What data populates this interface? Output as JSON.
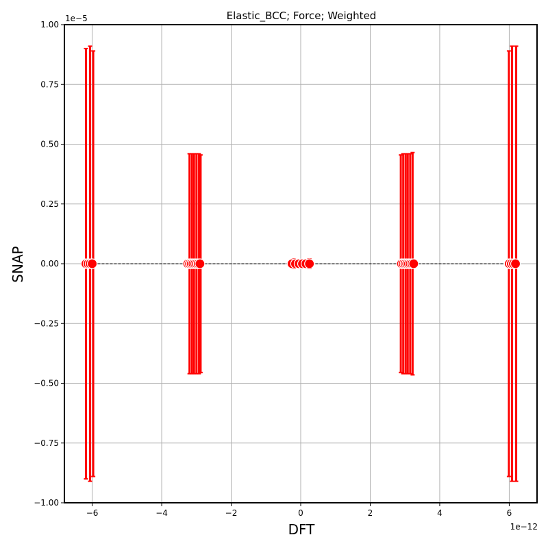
{
  "chart_data": {
    "type": "scatter",
    "title": "Elastic_BCC; Force; Weighted",
    "xlabel": "DFT",
    "ylabel": "SNAP",
    "x_offset_text": "1e−12",
    "y_offset_text": "1e−5",
    "xlim": [
      -6.8,
      6.8
    ],
    "ylim": [
      -1.0,
      1.0
    ],
    "x_ticks": [
      -6,
      -4,
      -2,
      0,
      2,
      4,
      6
    ],
    "x_tick_labels": [
      "−6",
      "−4",
      "−2",
      "0",
      "2",
      "4",
      "6"
    ],
    "y_ticks": [
      -1.0,
      -0.75,
      -0.5,
      -0.25,
      0.0,
      0.25,
      0.5,
      0.75,
      1.0
    ],
    "y_tick_labels": [
      "−1.00",
      "−0.75",
      "−0.50",
      "−0.25",
      "0.00",
      "0.25",
      "0.50",
      "0.75",
      "1.00"
    ],
    "grid": true,
    "colors": {
      "points": "#ff0000",
      "reference_line": "#000000",
      "grid": "#b0b0b0"
    },
    "reference_line": {
      "style": "dashed",
      "x": [
        -6.2,
        6.2
      ],
      "y": [
        0.0,
        0.0
      ]
    },
    "error_bars": [
      {
        "x": -6.18,
        "low": -0.9,
        "high": 0.9
      },
      {
        "x": -6.06,
        "low": -0.91,
        "high": 0.91
      },
      {
        "x": -5.97,
        "low": -0.89,
        "high": 0.89
      },
      {
        "x": -3.2,
        "low": -0.46,
        "high": 0.46
      },
      {
        "x": -3.13,
        "low": -0.46,
        "high": 0.46
      },
      {
        "x": -3.07,
        "low": -0.46,
        "high": 0.46
      },
      {
        "x": -3.0,
        "low": -0.46,
        "high": 0.46
      },
      {
        "x": -2.93,
        "low": -0.46,
        "high": 0.46
      },
      {
        "x": -2.88,
        "low": -0.455,
        "high": 0.455
      },
      {
        "x": -0.2,
        "low": -0.02,
        "high": 0.02
      },
      {
        "x": 0.25,
        "low": -0.02,
        "high": 0.02
      },
      {
        "x": 2.88,
        "low": -0.455,
        "high": 0.455
      },
      {
        "x": 2.95,
        "low": -0.46,
        "high": 0.46
      },
      {
        "x": 3.02,
        "low": -0.46,
        "high": 0.46
      },
      {
        "x": 3.08,
        "low": -0.46,
        "high": 0.46
      },
      {
        "x": 3.15,
        "low": -0.46,
        "high": 0.46
      },
      {
        "x": 3.22,
        "low": -0.465,
        "high": 0.465
      },
      {
        "x": 5.99,
        "low": -0.89,
        "high": 0.89
      },
      {
        "x": 6.08,
        "low": -0.91,
        "high": 0.91
      },
      {
        "x": 6.2,
        "low": -0.91,
        "high": 0.91
      }
    ],
    "points": [
      {
        "x": -6.18,
        "y": 0.0
      },
      {
        "x": -6.12,
        "y": 0.0
      },
      {
        "x": -6.06,
        "y": 0.0
      },
      {
        "x": -6.0,
        "y": 0.0
      },
      {
        "x": -3.25,
        "y": 0.0
      },
      {
        "x": -3.2,
        "y": 0.0
      },
      {
        "x": -3.15,
        "y": 0.0
      },
      {
        "x": -3.1,
        "y": 0.0
      },
      {
        "x": -3.05,
        "y": 0.0
      },
      {
        "x": -3.0,
        "y": 0.0
      },
      {
        "x": -2.95,
        "y": 0.0
      },
      {
        "x": -2.9,
        "y": 0.0
      },
      {
        "x": -0.25,
        "y": 0.0
      },
      {
        "x": -0.15,
        "y": 0.0
      },
      {
        "x": -0.05,
        "y": 0.0
      },
      {
        "x": 0.05,
        "y": 0.0
      },
      {
        "x": 0.15,
        "y": 0.0
      },
      {
        "x": 0.25,
        "y": 0.0
      },
      {
        "x": 2.9,
        "y": 0.0
      },
      {
        "x": 2.95,
        "y": 0.0
      },
      {
        "x": 3.0,
        "y": 0.0
      },
      {
        "x": 3.05,
        "y": 0.0
      },
      {
        "x": 3.1,
        "y": 0.0
      },
      {
        "x": 3.15,
        "y": 0.0
      },
      {
        "x": 3.2,
        "y": 0.0
      },
      {
        "x": 3.25,
        "y": 0.0
      },
      {
        "x": 6.0,
        "y": 0.0
      },
      {
        "x": 6.06,
        "y": 0.0
      },
      {
        "x": 6.12,
        "y": 0.0
      },
      {
        "x": 6.18,
        "y": 0.0
      }
    ]
  }
}
